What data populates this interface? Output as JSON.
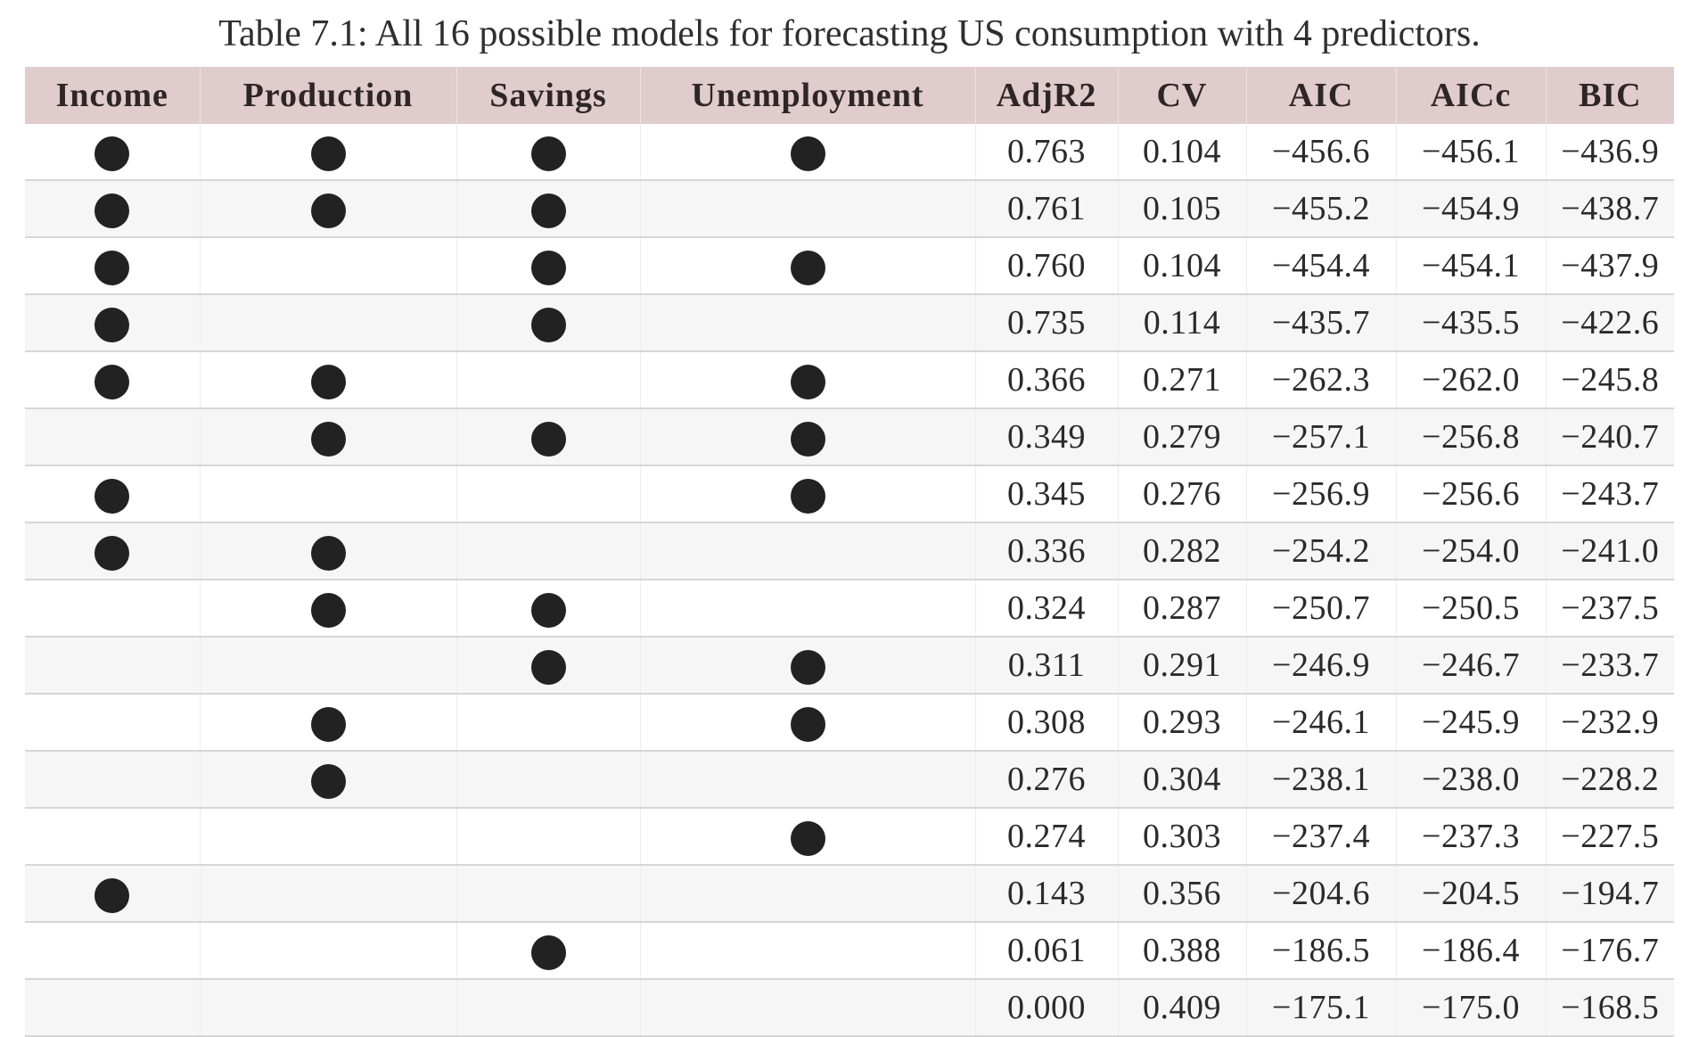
{
  "caption": "Table 7.1: All 16 possible models for forecasting US consumption with 4 predictors.",
  "columns": [
    "Income",
    "Production",
    "Savings",
    "Unemployment",
    "AdjR2",
    "CV",
    "AIC",
    "AICc",
    "BIC"
  ],
  "included_marker_icon": "filled-circle-icon",
  "rows": [
    {
      "income": true,
      "production": true,
      "savings": true,
      "unemployment": true,
      "adjr2": "0.763",
      "cv": "0.104",
      "aic": "-456.6",
      "aicc": "-456.1",
      "bic": "-436.9"
    },
    {
      "income": true,
      "production": true,
      "savings": true,
      "unemployment": false,
      "adjr2": "0.761",
      "cv": "0.105",
      "aic": "-455.2",
      "aicc": "-454.9",
      "bic": "-438.7"
    },
    {
      "income": true,
      "production": false,
      "savings": true,
      "unemployment": true,
      "adjr2": "0.760",
      "cv": "0.104",
      "aic": "-454.4",
      "aicc": "-454.1",
      "bic": "-437.9"
    },
    {
      "income": true,
      "production": false,
      "savings": true,
      "unemployment": false,
      "adjr2": "0.735",
      "cv": "0.114",
      "aic": "-435.7",
      "aicc": "-435.5",
      "bic": "-422.6"
    },
    {
      "income": true,
      "production": true,
      "savings": false,
      "unemployment": true,
      "adjr2": "0.366",
      "cv": "0.271",
      "aic": "-262.3",
      "aicc": "-262.0",
      "bic": "-245.8"
    },
    {
      "income": false,
      "production": true,
      "savings": true,
      "unemployment": true,
      "adjr2": "0.349",
      "cv": "0.279",
      "aic": "-257.1",
      "aicc": "-256.8",
      "bic": "-240.7"
    },
    {
      "income": true,
      "production": false,
      "savings": false,
      "unemployment": true,
      "adjr2": "0.345",
      "cv": "0.276",
      "aic": "-256.9",
      "aicc": "-256.6",
      "bic": "-243.7"
    },
    {
      "income": true,
      "production": true,
      "savings": false,
      "unemployment": false,
      "adjr2": "0.336",
      "cv": "0.282",
      "aic": "-254.2",
      "aicc": "-254.0",
      "bic": "-241.0"
    },
    {
      "income": false,
      "production": true,
      "savings": true,
      "unemployment": false,
      "adjr2": "0.324",
      "cv": "0.287",
      "aic": "-250.7",
      "aicc": "-250.5",
      "bic": "-237.5"
    },
    {
      "income": false,
      "production": false,
      "savings": true,
      "unemployment": true,
      "adjr2": "0.311",
      "cv": "0.291",
      "aic": "-246.9",
      "aicc": "-246.7",
      "bic": "-233.7"
    },
    {
      "income": false,
      "production": true,
      "savings": false,
      "unemployment": true,
      "adjr2": "0.308",
      "cv": "0.293",
      "aic": "-246.1",
      "aicc": "-245.9",
      "bic": "-232.9"
    },
    {
      "income": false,
      "production": true,
      "savings": false,
      "unemployment": false,
      "adjr2": "0.276",
      "cv": "0.304",
      "aic": "-238.1",
      "aicc": "-238.0",
      "bic": "-228.2"
    },
    {
      "income": false,
      "production": false,
      "savings": false,
      "unemployment": true,
      "adjr2": "0.274",
      "cv": "0.303",
      "aic": "-237.4",
      "aicc": "-237.3",
      "bic": "-227.5"
    },
    {
      "income": true,
      "production": false,
      "savings": false,
      "unemployment": false,
      "adjr2": "0.143",
      "cv": "0.356",
      "aic": "-204.6",
      "aicc": "-204.5",
      "bic": "-194.7"
    },
    {
      "income": false,
      "production": false,
      "savings": true,
      "unemployment": false,
      "adjr2": "0.061",
      "cv": "0.388",
      "aic": "-186.5",
      "aicc": "-186.4",
      "bic": "-176.7"
    },
    {
      "income": false,
      "production": false,
      "savings": false,
      "unemployment": false,
      "adjr2": "0.000",
      "cv": "0.409",
      "aic": "-175.1",
      "aicc": "-175.0",
      "bic": "-168.5"
    }
  ]
}
